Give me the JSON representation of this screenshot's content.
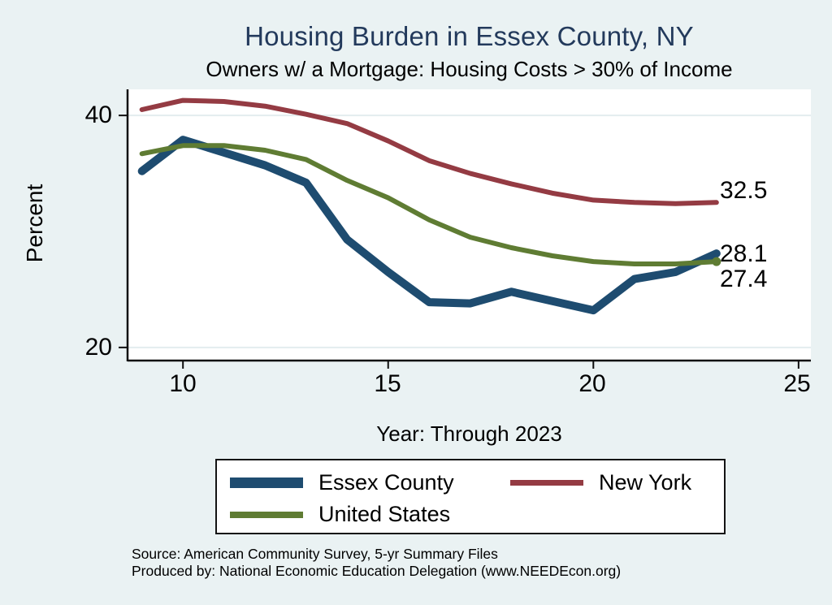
{
  "title": "Housing Burden in Essex County, NY",
  "subtitle": "Owners w/ a Mortgage: Housing Costs > 30% of Income",
  "source": {
    "line1": "Source: American Community Survey, 5-yr Summary Files",
    "line2": "Produced by: National Economic Education Delegation (www.NEEDEcon.org)"
  },
  "colors": {
    "background": "#eaf2f3",
    "plot_background": "#ffffff",
    "title_text": "#233a5c",
    "grid": "#e3edef",
    "axis": "#0f0f0f",
    "essex_county": "#1e4c70",
    "new_york": "#943b43",
    "united_states": "#5f7c33"
  },
  "chart_data": {
    "type": "line",
    "title": "Housing Burden in Essex County, NY",
    "subtitle": "Owners w/ a Mortgage: Housing Costs > 30% of Income",
    "xlabel": "Year: Through 2023",
    "ylabel": "Percent",
    "x": [
      9,
      10,
      11,
      12,
      13,
      14,
      15,
      16,
      17,
      18,
      19,
      20,
      21,
      22,
      23
    ],
    "xlim": [
      8.65,
      25.3
    ],
    "ylim": [
      18.8,
      42.25
    ],
    "xticks": [
      10,
      15,
      20,
      25
    ],
    "yticks": [
      40,
      20
    ],
    "grid": "horizontal-at-yticks",
    "legend_position": "bottom",
    "series": [
      {
        "name": "Essex County",
        "color": "#1e4c70",
        "width": 10,
        "end_label": "28.1",
        "end_marker": false,
        "values": [
          35.2,
          37.9,
          36.8,
          35.7,
          34.2,
          29.3,
          26.5,
          23.9,
          23.8,
          24.8,
          24.0,
          23.2,
          25.9,
          26.5,
          28.1
        ]
      },
      {
        "name": "New York",
        "color": "#943b43",
        "width": 6,
        "end_label": "32.5",
        "end_marker": false,
        "values": [
          40.5,
          41.3,
          41.2,
          40.8,
          40.1,
          39.3,
          37.8,
          36.1,
          35.0,
          34.1,
          33.3,
          32.7,
          32.5,
          32.4,
          32.5
        ]
      },
      {
        "name": "United States",
        "color": "#5f7c33",
        "width": 6,
        "end_label": "27.4",
        "end_marker": true,
        "values": [
          36.7,
          37.4,
          37.4,
          37.0,
          36.2,
          34.4,
          32.9,
          31.0,
          29.5,
          28.6,
          27.9,
          27.4,
          27.2,
          27.2,
          27.4
        ]
      }
    ]
  }
}
